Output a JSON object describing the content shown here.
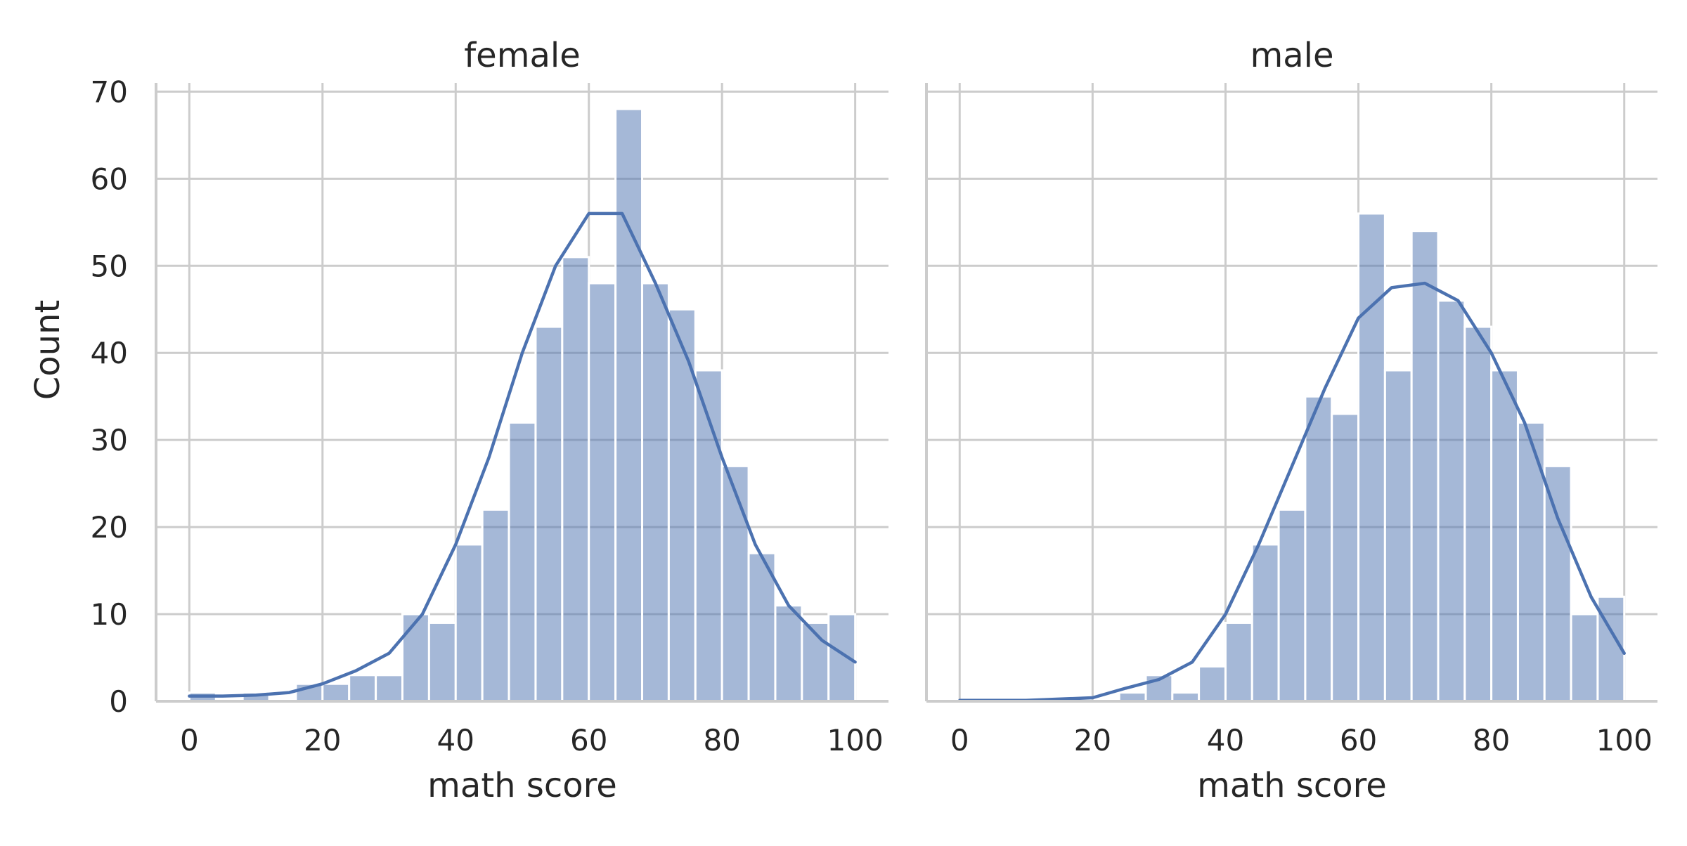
{
  "colors": {
    "bar_fill": "#4c72b0",
    "bar_opacity": 0.5,
    "kde_line": "#4c72b0",
    "grid": "#cccccc",
    "text": "#262626",
    "background": "#ffffff"
  },
  "chart_data": {
    "type": "bar",
    "subtype": "histogram-with-kde",
    "shared_y": true,
    "ylabel": "Count",
    "ylim": [
      0,
      71
    ],
    "yticks": [
      "0",
      "10",
      "20",
      "30",
      "40",
      "50",
      "60",
      "70"
    ],
    "xlim": [
      -5,
      105
    ],
    "xticks": [
      "0",
      "20",
      "40",
      "60",
      "80",
      "100"
    ],
    "grid": true,
    "panels": [
      {
        "title": "female",
        "xlabel": "math score",
        "bins": [
          {
            "x0": 0,
            "x1": 4,
            "count": 1
          },
          {
            "x0": 4,
            "x1": 8,
            "count": 0
          },
          {
            "x0": 8,
            "x1": 12,
            "count": 1
          },
          {
            "x0": 12,
            "x1": 16,
            "count": 0
          },
          {
            "x0": 16,
            "x1": 20,
            "count": 2
          },
          {
            "x0": 20,
            "x1": 24,
            "count": 2
          },
          {
            "x0": 24,
            "x1": 28,
            "count": 3
          },
          {
            "x0": 28,
            "x1": 32,
            "count": 3
          },
          {
            "x0": 32,
            "x1": 36,
            "count": 10
          },
          {
            "x0": 36,
            "x1": 40,
            "count": 9
          },
          {
            "x0": 40,
            "x1": 44,
            "count": 18
          },
          {
            "x0": 44,
            "x1": 48,
            "count": 22
          },
          {
            "x0": 48,
            "x1": 52,
            "count": 32
          },
          {
            "x0": 52,
            "x1": 56,
            "count": 43
          },
          {
            "x0": 56,
            "x1": 60,
            "count": 51
          },
          {
            "x0": 60,
            "x1": 64,
            "count": 48
          },
          {
            "x0": 64,
            "x1": 68,
            "count": 68
          },
          {
            "x0": 68,
            "x1": 72,
            "count": 48
          },
          {
            "x0": 72,
            "x1": 76,
            "count": 45
          },
          {
            "x0": 76,
            "x1": 80,
            "count": 38
          },
          {
            "x0": 80,
            "x1": 84,
            "count": 27
          },
          {
            "x0": 84,
            "x1": 88,
            "count": 17
          },
          {
            "x0": 88,
            "x1": 92,
            "count": 11
          },
          {
            "x0": 92,
            "x1": 96,
            "count": 9
          },
          {
            "x0": 96,
            "x1": 100,
            "count": 10
          }
        ],
        "kde": {
          "x": [
            0,
            5,
            10,
            15,
            20,
            25,
            30,
            35,
            40,
            45,
            50,
            55,
            60,
            65,
            70,
            75,
            80,
            85,
            90,
            95,
            100
          ],
          "y": [
            0.6,
            0.6,
            0.7,
            1,
            2,
            3.5,
            5.5,
            10,
            18,
            28,
            40,
            50,
            56,
            56,
            48,
            39,
            28,
            18,
            11,
            7,
            4.5
          ]
        }
      },
      {
        "title": "male",
        "xlabel": "math score",
        "bins": [
          {
            "x0": 24,
            "x1": 28,
            "count": 1
          },
          {
            "x0": 28,
            "x1": 32,
            "count": 3
          },
          {
            "x0": 32,
            "x1": 36,
            "count": 1
          },
          {
            "x0": 36,
            "x1": 40,
            "count": 4
          },
          {
            "x0": 40,
            "x1": 44,
            "count": 9
          },
          {
            "x0": 44,
            "x1": 48,
            "count": 18
          },
          {
            "x0": 48,
            "x1": 52,
            "count": 22
          },
          {
            "x0": 52,
            "x1": 56,
            "count": 35
          },
          {
            "x0": 56,
            "x1": 60,
            "count": 33
          },
          {
            "x0": 60,
            "x1": 64,
            "count": 56
          },
          {
            "x0": 64,
            "x1": 68,
            "count": 38
          },
          {
            "x0": 68,
            "x1": 72,
            "count": 54
          },
          {
            "x0": 72,
            "x1": 76,
            "count": 46
          },
          {
            "x0": 76,
            "x1": 80,
            "count": 43
          },
          {
            "x0": 80,
            "x1": 84,
            "count": 38
          },
          {
            "x0": 84,
            "x1": 88,
            "count": 32
          },
          {
            "x0": 88,
            "x1": 92,
            "count": 27
          },
          {
            "x0": 92,
            "x1": 96,
            "count": 10
          },
          {
            "x0": 96,
            "x1": 100,
            "count": 12
          }
        ],
        "kde": {
          "x": [
            0,
            10,
            20,
            25,
            30,
            35,
            40,
            45,
            50,
            55,
            60,
            65,
            70,
            75,
            80,
            85,
            90,
            95,
            100
          ],
          "y": [
            0.1,
            0.1,
            0.4,
            1.5,
            2.5,
            4.5,
            10,
            18,
            27,
            36,
            44,
            47.5,
            48,
            46,
            40,
            32,
            21,
            12,
            5.5
          ]
        }
      }
    ]
  }
}
